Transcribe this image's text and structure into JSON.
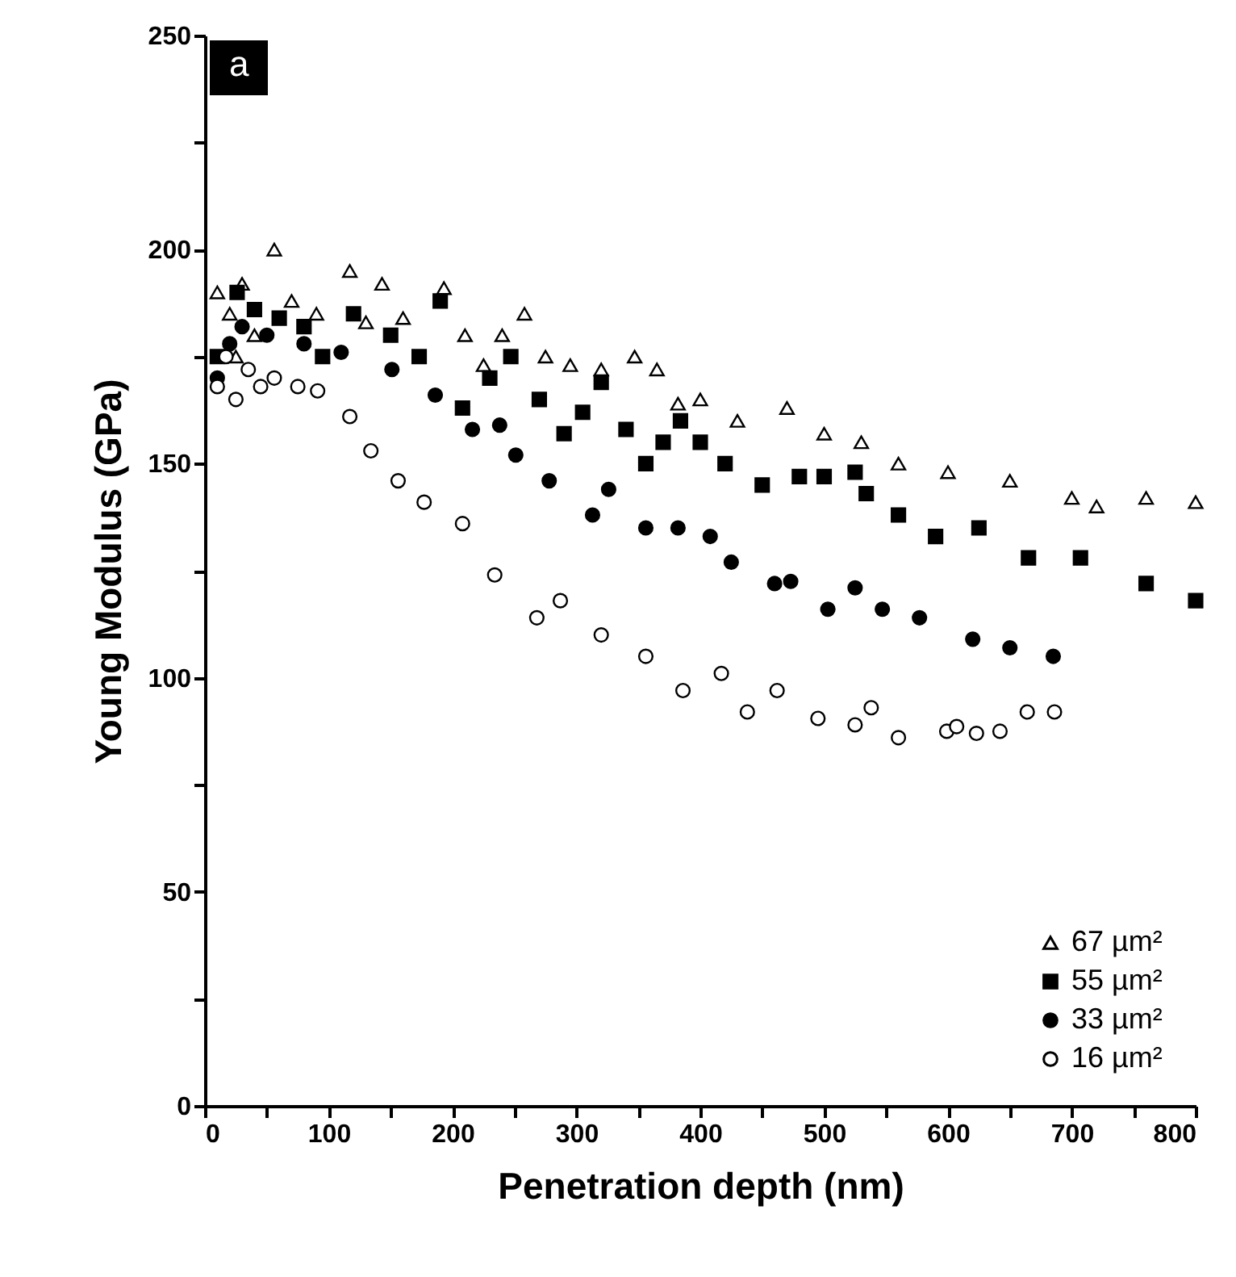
{
  "chart_data": {
    "type": "scatter",
    "xlabel": "Penetration depth (nm)",
    "ylabel": "Young Modulus (GPa)",
    "annotations": [
      "a"
    ],
    "xlim": [
      0,
      800
    ],
    "ylim": [
      0,
      250
    ],
    "xticks": [
      0,
      {
        "value": 50,
        "label": null
      },
      100,
      {
        "value": 150,
        "label": null
      },
      200,
      {
        "value": 250,
        "label": null
      },
      300,
      {
        "value": 350,
        "label": null
      },
      400,
      {
        "value": 450,
        "label": null
      },
      500,
      {
        "value": 550,
        "label": null
      },
      600,
      {
        "value": 650,
        "label": null
      },
      700,
      {
        "value": 750,
        "label": null
      },
      800
    ],
    "yticks": [
      0,
      {
        "value": 25,
        "label": null
      },
      50,
      {
        "value": 75,
        "label": null
      },
      100,
      {
        "value": 125,
        "label": null
      },
      150,
      {
        "value": 175,
        "label": null
      },
      200,
      {
        "value": 225,
        "label": null
      },
      250
    ],
    "grid": false,
    "legend": "bottom right",
    "series": [
      {
        "name": "67 µm²",
        "color": "#ffffff",
        "marker": "triangle",
        "x": [
          10,
          20,
          25,
          30,
          40,
          56,
          70,
          90,
          117,
          130,
          143,
          160,
          193,
          210,
          225,
          240,
          258,
          275,
          295,
          320,
          347,
          365,
          382,
          400,
          430,
          470,
          500,
          530,
          560,
          600,
          650,
          700,
          720,
          760,
          800
        ],
        "values": [
          190,
          185,
          175,
          192,
          180,
          200,
          188,
          185,
          195,
          183,
          192,
          184,
          191,
          180,
          173,
          180,
          185,
          175,
          173,
          172,
          175,
          172,
          164,
          165,
          160,
          163,
          157,
          155,
          150,
          148,
          146,
          142,
          140,
          142,
          141
        ]
      },
      {
        "name": "55 µm²",
        "color": "#000000",
        "marker": "square",
        "x": [
          10,
          26,
          40,
          60,
          80,
          95,
          120,
          150,
          173,
          190,
          208,
          230,
          247,
          270,
          290,
          305,
          320,
          340,
          356,
          370,
          384,
          400,
          420,
          450,
          480,
          500,
          525,
          534,
          560,
          590,
          625,
          665,
          707,
          760,
          800
        ],
        "values": [
          175,
          190,
          186,
          184,
          182,
          175,
          185,
          180,
          175,
          188,
          163,
          170,
          175,
          165,
          157,
          162,
          169,
          158,
          150,
          155,
          160,
          155,
          150,
          145,
          147,
          147,
          148,
          143,
          138,
          133,
          135,
          128,
          128,
          122,
          118
        ]
      },
      {
        "name": "33 µm²",
        "color": "#000000",
        "marker": "circle",
        "x": [
          10,
          20,
          30,
          50,
          80,
          110,
          151,
          186,
          216,
          238,
          251,
          278,
          313,
          326,
          356,
          382,
          408,
          425,
          460,
          473,
          503,
          525,
          547,
          577,
          620,
          650,
          685
        ],
        "values": [
          170,
          178,
          182,
          180,
          178,
          176,
          172,
          166,
          158,
          159,
          152,
          146,
          138,
          144,
          135,
          135,
          133,
          127,
          122,
          122.5,
          116,
          121,
          116,
          114,
          109,
          107,
          105
        ]
      },
      {
        "name": "16 µm²",
        "color": "#ffffff",
        "marker": "circle",
        "x": [
          10,
          17,
          25,
          35,
          45,
          56,
          75,
          91,
          117,
          134,
          156,
          177,
          208,
          234,
          268,
          287,
          320,
          356,
          386,
          417,
          438,
          462,
          495,
          525,
          538,
          560,
          599,
          607,
          623,
          642,
          664,
          686
        ],
        "values": [
          168,
          175,
          165,
          172,
          168,
          170,
          168,
          167,
          161,
          153,
          146,
          141,
          136,
          124,
          114,
          118,
          110,
          105,
          97,
          101,
          92,
          97,
          90.5,
          89,
          93,
          86,
          87.5,
          88.6,
          87,
          87.5,
          92,
          92
        ]
      }
    ]
  }
}
